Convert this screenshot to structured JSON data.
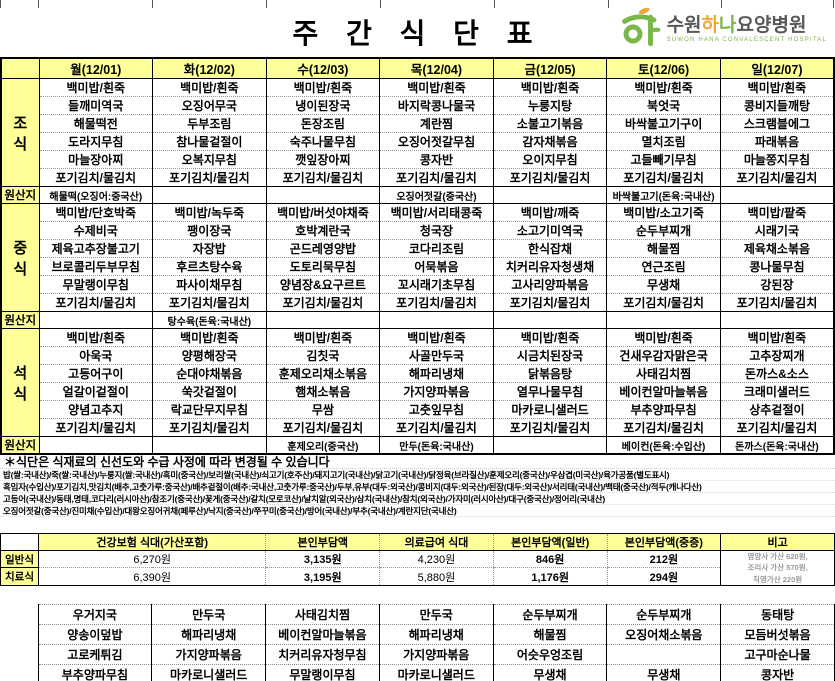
{
  "title": "주 간 식 단 표",
  "logo": {
    "name_parts": [
      {
        "text": "수원",
        "color": "#57585a"
      },
      {
        "text": "하",
        "color": "#f0a63c"
      },
      {
        "text": "나",
        "color": "#7ab648"
      },
      {
        "text": "요양병원",
        "color": "#57585a"
      }
    ],
    "subtitle": "SUWON HANA CONVALESCENT HOSPITAL",
    "green": "#7ab648",
    "orange": "#f0a63c"
  },
  "colors": {
    "header_yellow": "#ffff99",
    "border_black": "#000000"
  },
  "days": [
    "월(12/01)",
    "화(12/02)",
    "수(12/03)",
    "목(12/04)",
    "금(12/05)",
    "토(12/06)",
    "일(12/07)"
  ],
  "sections": [
    {
      "label": "조식",
      "label_chars": [
        "조",
        "식"
      ],
      "rows": [
        [
          "백미밥/흰죽",
          "백미밥/흰죽",
          "백미밥/흰죽",
          "백미밥/흰죽",
          "백미밥/흰죽",
          "백미밥/흰죽",
          "백미밥/흰죽"
        ],
        [
          "들깨미역국",
          "오징어무국",
          "냉이된장국",
          "바지락콩나물국",
          "누룽지탕",
          "북엇국",
          "콩비지들깨탕"
        ],
        [
          "해물떡전",
          "두부조림",
          "돈장조림",
          "계란찜",
          "소불고기볶음",
          "바싹불고기구이",
          "스크램블에그"
        ],
        [
          "도라지무침",
          "참나물겉절이",
          "숙주나물무침",
          "오징어젓갈무침",
          "감자채볶음",
          "멸치조림",
          "파래볶음"
        ],
        [
          "마늘장아찌",
          "오복지무침",
          "깻잎장아찌",
          "콩자반",
          "오이지무침",
          "고들빼기무침",
          "마늘쫑지무침"
        ],
        [
          "포기김치/물김치",
          "포기김치/물김치",
          "포기김치/물김치",
          "포기김치/물김치",
          "포기김치/물김치",
          "포기김치/물김치",
          "포기김치/물김치"
        ]
      ],
      "origin_label": "원산지",
      "origins": [
        "해물떡(오징어:중국산)",
        "",
        "",
        "오징어젓갈(중국산)",
        "",
        "바싹불고기(돈육:국내산)",
        ""
      ]
    },
    {
      "label": "중식",
      "label_chars": [
        "중",
        "식"
      ],
      "rows": [
        [
          "백미밥/단호박죽",
          "백미밥/녹두죽",
          "백미밥/버섯야채죽",
          "백미밥/서리태콩죽",
          "백미밥/깨죽",
          "백미밥/소고기죽",
          "백미밥/팥죽"
        ],
        [
          "수제비국",
          "팽이장국",
          "호박계란국",
          "청국장",
          "소고기미역국",
          "순두부찌개",
          "시래기국"
        ],
        [
          "제육고추장불고기",
          "자장밥",
          "곤드레영양밥",
          "코다리조림",
          "한식잡채",
          "해물찜",
          "제육채소볶음"
        ],
        [
          "브로콜리두부무침",
          "후르츠탕수육",
          "도토리묵무침",
          "어묵볶음",
          "치커리유자청생채",
          "연근조림",
          "콩나물무침"
        ],
        [
          "무말랭이무침",
          "파사이채무침",
          "양념장&요구르트",
          "꼬시래기초무침",
          "고사리양파볶음",
          "무생채",
          "강된장"
        ],
        [
          "포기김치/물김치",
          "포기김치/물김치",
          "포기김치/물김치",
          "포기김치/물김치",
          "포기김치/물김치",
          "포기김치/물김치",
          "포기김치/물김치"
        ]
      ],
      "origin_label": "원산지",
      "origins": [
        "",
        "탕수육(돈육:국내산)",
        "",
        "",
        "",
        "",
        ""
      ]
    },
    {
      "label": "석식",
      "label_chars": [
        "석",
        "식"
      ],
      "rows": [
        [
          "백미밥/흰죽",
          "백미밥/흰죽",
          "백미밥/흰죽",
          "백미밥/흰죽",
          "백미밥/흰죽",
          "백미밥/흰죽",
          "백미밥/흰죽"
        ],
        [
          "아욱국",
          "양평해장국",
          "김칫국",
          "사골만두국",
          "시금치된장국",
          "건새우감자맑은국",
          "고추장찌개"
        ],
        [
          "고등어구이",
          "순대야채볶음",
          "훈제오리채소볶음",
          "해파리냉채",
          "닭볶음탕",
          "사태김치찜",
          "돈까스&소스"
        ],
        [
          "얼갈이겉절이",
          "쑥갓겉절이",
          "햄채소볶음",
          "가지양파볶음",
          "열무나물무침",
          "베이컨알마늘볶음",
          "크래미샐러드"
        ],
        [
          "양념고추지",
          "락교단무지무침",
          "무쌈",
          "고춧잎무침",
          "마카로니샐러드",
          "부추양파무침",
          "상추겉절이"
        ],
        [
          "포기김치/물김치",
          "포기김치/물김치",
          "포기김치/물김치",
          "포기김치/물김치",
          "포기김치/물김치",
          "포기김치/물김치",
          "포기김치/물김치"
        ]
      ],
      "origin_label": "원산지",
      "origins": [
        "",
        "",
        "훈제오리(중국산)",
        "만두(돈육:국내산)",
        "",
        "베이컨(돈육:수입산)",
        "돈까스(돈육:국내산)"
      ]
    }
  ],
  "notice": "＊식단은 식재료의  신선도와 수급 사정에 따라 변경될 수 있습니다",
  "origin_details": [
    "밥(쌀:국내산)/죽(쌀:국내산)/누룽지(쌀:국내산)/흑미(중국산)/보리쌀(국내산)/쇠고기(호주산)/돼지고기(국내산)/닭고기(국내산)/닭정육(브라질산)/훈제오리(중국산)/우삼겹(미국산)/육가공품(별도표시)",
    "흑임자(수입산)/포기김치,맛김치(배추,고춧가루:중국산)/배추겉절이(배추:국내산,고춧가루:중국산)/두부,유부(대두:외국산)/콩비지(대두:외국산)/된장(대두:외국산)/서리태(국내산)/백태(중국산)/적두(캐나다산)",
    "고등어(국내산)/동태,명태,코다리(러시아산)/참조기(중국산)/꽃게(중국산)/갈치(모로코산)/날치알(외국산)/삼치(국내산)/참치(외국산)/가자미(러시아산)/대구(중국산)/정어리(국내산)",
    "오징어젓갈(중국산)/진미채(수입산)/대왕오징어귀채(페루산)/낙지(중국산)/쭈꾸미(중국산)/방어(국내산)/부추(국내산)/계란지단(국내산)"
  ],
  "price": {
    "headers": [
      "건강보험 식대(가산포함)",
      "본인부담액",
      "의료급여 식대",
      "본인부담액(일반)",
      "본인부담액(중증)",
      "비고"
    ],
    "rows": [
      {
        "label": "일반식",
        "values": [
          "6,270원",
          "3,135원",
          "4,230원",
          "846원",
          "212원"
        ]
      },
      {
        "label": "치료식",
        "values": [
          "6,390원",
          "3,195원",
          "5,880원",
          "1,176원",
          "294원"
        ]
      }
    ],
    "note_lines": [
      "영양사 가산 620원,",
      "조리사 가산 570원,",
      "직영가산 220원"
    ]
  },
  "extra_menu": {
    "rows": [
      [
        "우거지국",
        "만두국",
        "사태김치찜",
        "만두국",
        "순두부찌개",
        "순두부찌개",
        "동태탕"
      ],
      [
        "양송이덮밥",
        "해파리냉채",
        "베이컨알마늘볶음",
        "해파리냉채",
        "해물찜",
        "오징어채소볶음",
        "모듬버섯볶음"
      ],
      [
        "고로케튀김",
        "가지양파볶음",
        "치커리유자청무침",
        "가지양파볶음",
        "어슷우엉조림",
        "",
        "고구마순나물"
      ],
      [
        "부추양파무침",
        "마카로니샐러드",
        "무말랭이무침",
        "마카로니샐러드",
        "무생채",
        "무생채",
        "콩자반"
      ]
    ]
  }
}
